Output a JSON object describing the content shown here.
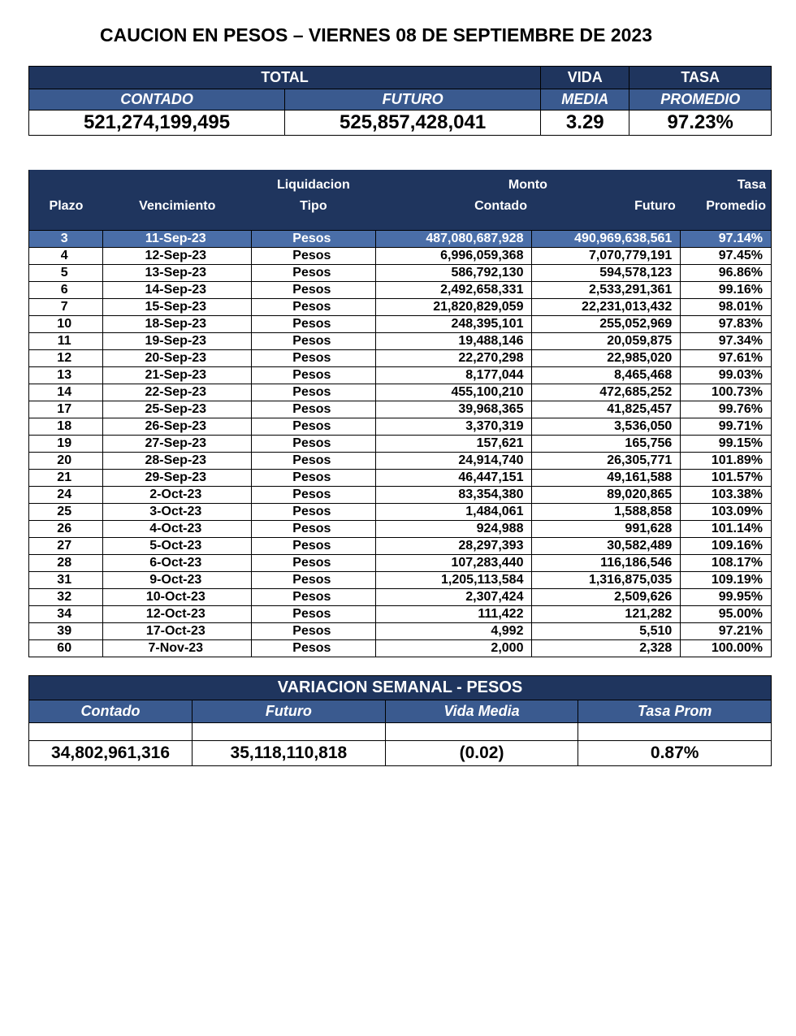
{
  "title": "CAUCION EN PESOS – VIERNES 08 DE SEPTIEMBRE DE 2023",
  "summary": {
    "headers": {
      "total": "TOTAL",
      "vida": "VIDA",
      "tasa": "TASA",
      "contado": "CONTADO",
      "futuro": "FUTURO",
      "media": "MEDIA",
      "promedio": "PROMEDIO"
    },
    "values": {
      "contado": "521,274,199,495",
      "futuro": "525,857,428,041",
      "vida_media": "3.29",
      "tasa_promedio": "97.23%"
    }
  },
  "detail": {
    "headers": {
      "plazo": "Plazo",
      "vencimiento": "Vencimiento",
      "liquidacion": "Liquidacion",
      "tipo": "Tipo",
      "monto": "Monto",
      "contado": "Contado",
      "futuro": "Futuro",
      "tasa": "Tasa",
      "promedio": "Promedio"
    },
    "rows": [
      {
        "plazo": "3",
        "venc": "11-Sep-23",
        "tipo": "Pesos",
        "contado": "487,080,687,928",
        "futuro": "490,969,638,561",
        "tasa": "97.14%",
        "hl": true
      },
      {
        "plazo": "4",
        "venc": "12-Sep-23",
        "tipo": "Pesos",
        "contado": "6,996,059,368",
        "futuro": "7,070,779,191",
        "tasa": "97.45%"
      },
      {
        "plazo": "5",
        "venc": "13-Sep-23",
        "tipo": "Pesos",
        "contado": "586,792,130",
        "futuro": "594,578,123",
        "tasa": "96.86%"
      },
      {
        "plazo": "6",
        "venc": "14-Sep-23",
        "tipo": "Pesos",
        "contado": "2,492,658,331",
        "futuro": "2,533,291,361",
        "tasa": "99.16%"
      },
      {
        "plazo": "7",
        "venc": "15-Sep-23",
        "tipo": "Pesos",
        "contado": "21,820,829,059",
        "futuro": "22,231,013,432",
        "tasa": "98.01%"
      },
      {
        "plazo": "10",
        "venc": "18-Sep-23",
        "tipo": "Pesos",
        "contado": "248,395,101",
        "futuro": "255,052,969",
        "tasa": "97.83%"
      },
      {
        "plazo": "11",
        "venc": "19-Sep-23",
        "tipo": "Pesos",
        "contado": "19,488,146",
        "futuro": "20,059,875",
        "tasa": "97.34%"
      },
      {
        "plazo": "12",
        "venc": "20-Sep-23",
        "tipo": "Pesos",
        "contado": "22,270,298",
        "futuro": "22,985,020",
        "tasa": "97.61%"
      },
      {
        "plazo": "13",
        "venc": "21-Sep-23",
        "tipo": "Pesos",
        "contado": "8,177,044",
        "futuro": "8,465,468",
        "tasa": "99.03%"
      },
      {
        "plazo": "14",
        "venc": "22-Sep-23",
        "tipo": "Pesos",
        "contado": "455,100,210",
        "futuro": "472,685,252",
        "tasa": "100.73%"
      },
      {
        "plazo": "17",
        "venc": "25-Sep-23",
        "tipo": "Pesos",
        "contado": "39,968,365",
        "futuro": "41,825,457",
        "tasa": "99.76%"
      },
      {
        "plazo": "18",
        "venc": "26-Sep-23",
        "tipo": "Pesos",
        "contado": "3,370,319",
        "futuro": "3,536,050",
        "tasa": "99.71%"
      },
      {
        "plazo": "19",
        "venc": "27-Sep-23",
        "tipo": "Pesos",
        "contado": "157,621",
        "futuro": "165,756",
        "tasa": "99.15%"
      },
      {
        "plazo": "20",
        "venc": "28-Sep-23",
        "tipo": "Pesos",
        "contado": "24,914,740",
        "futuro": "26,305,771",
        "tasa": "101.89%"
      },
      {
        "plazo": "21",
        "venc": "29-Sep-23",
        "tipo": "Pesos",
        "contado": "46,447,151",
        "futuro": "49,161,588",
        "tasa": "101.57%"
      },
      {
        "plazo": "24",
        "venc": "2-Oct-23",
        "tipo": "Pesos",
        "contado": "83,354,380",
        "futuro": "89,020,865",
        "tasa": "103.38%"
      },
      {
        "plazo": "25",
        "venc": "3-Oct-23",
        "tipo": "Pesos",
        "contado": "1,484,061",
        "futuro": "1,588,858",
        "tasa": "103.09%"
      },
      {
        "plazo": "26",
        "venc": "4-Oct-23",
        "tipo": "Pesos",
        "contado": "924,988",
        "futuro": "991,628",
        "tasa": "101.14%"
      },
      {
        "plazo": "27",
        "venc": "5-Oct-23",
        "tipo": "Pesos",
        "contado": "28,297,393",
        "futuro": "30,582,489",
        "tasa": "109.16%"
      },
      {
        "plazo": "28",
        "venc": "6-Oct-23",
        "tipo": "Pesos",
        "contado": "107,283,440",
        "futuro": "116,186,546",
        "tasa": "108.17%"
      },
      {
        "plazo": "31",
        "venc": "9-Oct-23",
        "tipo": "Pesos",
        "contado": "1,205,113,584",
        "futuro": "1,316,875,035",
        "tasa": "109.19%"
      },
      {
        "plazo": "32",
        "venc": "10-Oct-23",
        "tipo": "Pesos",
        "contado": "2,307,424",
        "futuro": "2,509,626",
        "tasa": "99.95%"
      },
      {
        "plazo": "34",
        "venc": "12-Oct-23",
        "tipo": "Pesos",
        "contado": "111,422",
        "futuro": "121,282",
        "tasa": "95.00%"
      },
      {
        "plazo": "39",
        "venc": "17-Oct-23",
        "tipo": "Pesos",
        "contado": "4,992",
        "futuro": "5,510",
        "tasa": "97.21%"
      },
      {
        "plazo": "60",
        "venc": "7-Nov-23",
        "tipo": "Pesos",
        "contado": "2,000",
        "futuro": "2,328",
        "tasa": "100.00%"
      }
    ]
  },
  "variation": {
    "title": "VARIACION SEMANAL - PESOS",
    "headers": {
      "contado": "Contado",
      "futuro": "Futuro",
      "vida_media": "Vida Media",
      "tasa_prom": "Tasa Prom"
    },
    "values": {
      "contado": "34,802,961,316",
      "futuro": "35,118,110,818",
      "vida_media": "(0.02)",
      "tasa_prom": "0.87%"
    }
  },
  "colors": {
    "header_dark": "#1f355e",
    "header_mid": "#3a5a8f",
    "row_highlight": "#4a6ea8",
    "border": "#000000",
    "background": "#ffffff"
  }
}
